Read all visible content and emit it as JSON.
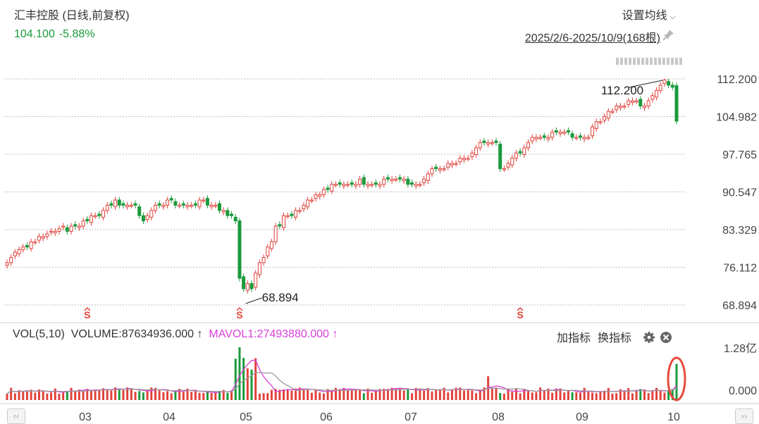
{
  "header": {
    "title": "汇丰控股 (日线,前复权)",
    "price": "104.100",
    "change_pct": "-5.88%",
    "ma_setting_label": "设置均线",
    "date_range": "2025/2/6-2025/10/9(168根)"
  },
  "colors": {
    "up": "#e0423b",
    "down": "#1a9a3c",
    "mavol1": "#d63fd6",
    "mavol2": "#999999",
    "highlight": "#e64a3b"
  },
  "price_axis": {
    "ticks": [
      "112.200",
      "104.982",
      "97.765",
      "90.547",
      "83.329",
      "76.112",
      "68.894"
    ]
  },
  "annotations": {
    "high_label": "112.200",
    "low_label": "68.894",
    "signal_marker": "S"
  },
  "volume_panel": {
    "indicator": "VOL(5,10)",
    "volume_label": "VOLUME:87634936.000",
    "mavol1_label": "MAVOL1:27493880.000",
    "add_indicator": "加指标",
    "switch_indicator": "换指标",
    "axis_ticks": [
      "1.28亿",
      "0.000"
    ]
  },
  "x_axis": {
    "ticks": [
      "03",
      "04",
      "05",
      "06",
      "07",
      "08",
      "09",
      "10"
    ]
  },
  "scroll": {
    "left": "‹‹",
    "right": "››"
  },
  "chart_data": {
    "type": "candlestick",
    "title": "汇丰控股 (日线,前复权)",
    "date_range": "2025/2/6-2025/10/9",
    "bar_count": 168,
    "ylim": [
      68.894,
      112.2
    ],
    "y_ticks": [
      68.894,
      76.112,
      83.329,
      90.547,
      97.765,
      104.982,
      112.2
    ],
    "x_ticks": [
      "03",
      "04",
      "05",
      "06",
      "07",
      "08",
      "09",
      "10"
    ],
    "period_high": 112.2,
    "period_low": 68.894,
    "last_close": 104.1,
    "last_change_pct": -5.88,
    "approx_closes": [
      77,
      78,
      79,
      79.5,
      80,
      80,
      81,
      81,
      82,
      82,
      82.5,
      83,
      83,
      83.5,
      84,
      83,
      84,
      84,
      84,
      85,
      85,
      86,
      86,
      86,
      87,
      88,
      88,
      89,
      88,
      88,
      88,
      88,
      88,
      86,
      85,
      86,
      87,
      88,
      88,
      88,
      89,
      89,
      88,
      88,
      88,
      88,
      88,
      88,
      89,
      89,
      88,
      88,
      88,
      87,
      87,
      86,
      86,
      85,
      74,
      72,
      73,
      72,
      75,
      77,
      78,
      80,
      81,
      84,
      84,
      86,
      86,
      86,
      87,
      87,
      88,
      89,
      89,
      90,
      90,
      91,
      91,
      92,
      92,
      92,
      92,
      92,
      92,
      92,
      93,
      92,
      92,
      92,
      92,
      92,
      93,
      93,
      93,
      93,
      93,
      93,
      92,
      92,
      92,
      92,
      93,
      94,
      95,
      95,
      95,
      95,
      96,
      96,
      96,
      97,
      97,
      97,
      98,
      99,
      100,
      100,
      100,
      100,
      100,
      95,
      95,
      96,
      97,
      98,
      98,
      99,
      100,
      101,
      101,
      101,
      101,
      101,
      102,
      102,
      102,
      102,
      102,
      101,
      101,
      101,
      101,
      101,
      103,
      104,
      104,
      105,
      106,
      106,
      107,
      107,
      107,
      108,
      108,
      108,
      107,
      107,
      108,
      109,
      110,
      111,
      112,
      111,
      110.6,
      104.1
    ],
    "volume": {
      "unit": "shares",
      "axis_max": 128000000,
      "last_volume": 87634936,
      "mavol1": 27493880,
      "mavol_periods": [
        5,
        10
      ]
    }
  }
}
